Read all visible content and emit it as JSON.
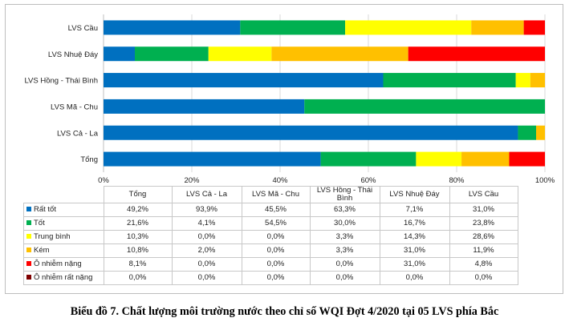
{
  "chart_data": {
    "type": "bar",
    "orientation": "horizontal",
    "stacked": "percent",
    "categories": [
      "LVS Cầu",
      "LVS Nhuệ Đáy",
      "LVS Hồng - Thái Bình",
      "LVS Mã - Chu",
      "LVS Cả - La",
      "Tổng"
    ],
    "series": [
      {
        "name": "Rất tốt",
        "color": "#0070C0",
        "values": [
          31.0,
          7.1,
          63.3,
          45.5,
          93.9,
          49.2
        ]
      },
      {
        "name": "Tốt",
        "color": "#00B050",
        "values": [
          23.8,
          16.7,
          30.0,
          54.5,
          4.1,
          21.6
        ]
      },
      {
        "name": "Trung bình",
        "color": "#FFFF00",
        "values": [
          28.6,
          14.3,
          3.3,
          0.0,
          0.0,
          10.3
        ]
      },
      {
        "name": "Kém",
        "color": "#FFC000",
        "values": [
          11.9,
          31.0,
          3.3,
          0.0,
          2.0,
          10.8
        ]
      },
      {
        "name": "Ô nhiễm nặng",
        "color": "#FF0000",
        "values": [
          4.8,
          31.0,
          0.0,
          0.0,
          0.0,
          8.1
        ]
      },
      {
        "name": "Ô nhiễm rất  nặng",
        "color": "#7F0000",
        "values": [
          0.0,
          0.0,
          0.0,
          0.0,
          0.0,
          0.0
        ]
      }
    ],
    "xlim": [
      0,
      100
    ],
    "x_ticks": [
      "0%",
      "20%",
      "40%",
      "60%",
      "80%",
      "100%"
    ],
    "grid": true,
    "legend": "data-table",
    "data_table": {
      "columns": [
        "Tổng",
        "LVS Cả - La",
        "LVS Mã - Chu",
        "LVS Hồng - Thái Bình",
        "LVS Nhuệ Đáy",
        "LVS Cầu"
      ],
      "rows": [
        {
          "label": "Rất tốt",
          "color": "#0070C0",
          "cells": [
            "49,2%",
            "93,9%",
            "45,5%",
            "63,3%",
            "7,1%",
            "31,0%"
          ]
        },
        {
          "label": "Tốt",
          "color": "#00B050",
          "cells": [
            "21,6%",
            "4,1%",
            "54,5%",
            "30,0%",
            "16,7%",
            "23,8%"
          ]
        },
        {
          "label": "Trung bình",
          "color": "#FFFF00",
          "cells": [
            "10,3%",
            "0,0%",
            "0,0%",
            "3,3%",
            "14,3%",
            "28,6%"
          ]
        },
        {
          "label": "Kém",
          "color": "#FFC000",
          "cells": [
            "10,8%",
            "2,0%",
            "0,0%",
            "3,3%",
            "31,0%",
            "11,9%"
          ]
        },
        {
          "label": "Ô nhiễm nặng",
          "color": "#FF0000",
          "cells": [
            "8,1%",
            "0,0%",
            "0,0%",
            "0,0%",
            "31,0%",
            "4,8%"
          ]
        },
        {
          "label": "Ô nhiễm rất  nặng",
          "color": "#7F0000",
          "cells": [
            "0,0%",
            "0,0%",
            "0,0%",
            "0,0%",
            "0,0%",
            "0,0%"
          ]
        }
      ]
    }
  },
  "caption": "Biểu đồ 7. Chất lượng môi trường nước theo chỉ số WQI Đợt 4/2020 tại 05 LVS phía Bắc"
}
